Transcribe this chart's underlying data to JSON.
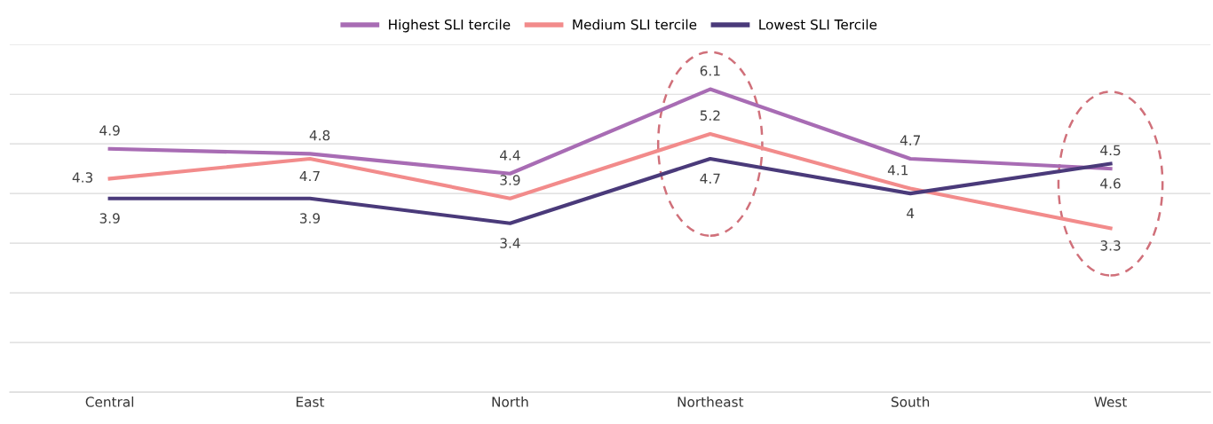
{
  "chart_data": {
    "type": "line",
    "categories": [
      "Central",
      "East",
      "North",
      "Northeast",
      "South",
      "West"
    ],
    "series": [
      {
        "name": "Highest SLI tercile",
        "color": "#a86cb4",
        "values": [
          4.9,
          4.8,
          4.4,
          6.1,
          4.7,
          4.5
        ]
      },
      {
        "name": "Medium SLI tercile",
        "color": "#f28b8b",
        "values": [
          4.3,
          4.7,
          3.9,
          5.2,
          4.1,
          3.3
        ]
      },
      {
        "name": "Lowest SLI Tercile",
        "color": "#4a3a7a",
        "values": [
          3.9,
          3.9,
          3.4,
          4.7,
          4,
          4.6
        ]
      }
    ],
    "ylim": [
      0,
      7
    ],
    "yticks": [
      {
        "value": 0,
        "label": null
      },
      {
        "value": 1,
        "label": null
      },
      {
        "value": 2,
        "label": null
      },
      {
        "value": 3,
        "label": null
      },
      {
        "value": 4,
        "label": null
      },
      {
        "value": 5,
        "label": null
      },
      {
        "value": 6,
        "label": null
      },
      {
        "value": 7,
        "label": null
      }
    ],
    "tick_labels": "x",
    "grid": "y",
    "legend": "top",
    "marker": "none",
    "line_style": "solid",
    "data_labels": true
  }
}
